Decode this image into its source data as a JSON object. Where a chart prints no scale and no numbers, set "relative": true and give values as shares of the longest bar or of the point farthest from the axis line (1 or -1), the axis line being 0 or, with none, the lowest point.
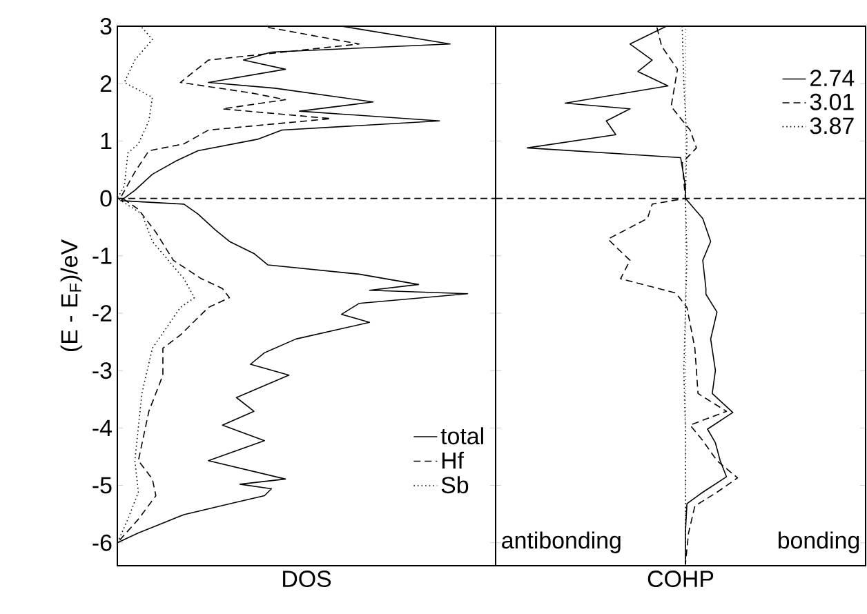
{
  "chart_data": [
    {
      "type": "line",
      "orientation": "horizontal",
      "relative": true,
      "xlabel": "DOS",
      "ylabel": "(E - E$_{F}$)/eV",
      "ylim": [
        -6.4,
        3
      ],
      "yticks": [
        -6,
        -5,
        -4,
        -3,
        -2,
        -1,
        0,
        1,
        2,
        3
      ],
      "tick_labels": "y",
      "legend": "bottom right",
      "ref_lines": [
        {
          "axis": "y",
          "value": 0,
          "line_style": "dashed",
          "color": "#000000"
        }
      ],
      "series": [
        {
          "name": "total",
          "color": "#000000",
          "line_style": "solid",
          "x": [
            3.0,
            2.69,
            2.55,
            2.41,
            2.25,
            2.02,
            1.92,
            1.68,
            1.52,
            1.35,
            1.19,
            1.03,
            0.83,
            0.66,
            0.42,
            0.14,
            -0.04,
            -0.1,
            -0.27,
            -0.55,
            -0.75,
            -0.96,
            -1.16,
            -1.32,
            -1.5,
            -1.6,
            -1.66,
            -1.83,
            -2.02,
            -2.16,
            -2.45,
            -2.69,
            -2.89,
            -3.08,
            -3.47,
            -3.71,
            -3.95,
            -4.22,
            -4.57,
            -4.89,
            -4.98,
            -5.06,
            -5.18,
            -5.28,
            -5.51,
            -5.83,
            -6.0
          ],
          "values": [
            0.64,
            0.95,
            0.44,
            0.36,
            0.48,
            0.26,
            0.45,
            0.73,
            0.52,
            0.92,
            0.47,
            0.4,
            0.23,
            0.17,
            0.1,
            0.05,
            0.01,
            0.19,
            0.23,
            0.28,
            0.32,
            0.39,
            0.43,
            0.69,
            0.86,
            0.72,
            1.0,
            0.69,
            0.64,
            0.72,
            0.51,
            0.42,
            0.38,
            0.49,
            0.34,
            0.39,
            0.3,
            0.42,
            0.26,
            0.48,
            0.35,
            0.44,
            0.42,
            0.35,
            0.19,
            0.06,
            0.0
          ]
        },
        {
          "name": "Hf",
          "color": "#000000",
          "line_style": "dashed",
          "x": [
            2.98,
            2.69,
            2.41,
            2.02,
            1.84,
            1.72,
            1.56,
            1.39,
            1.19,
            0.95,
            0.83,
            0.46,
            0.02,
            -0.19,
            -0.59,
            -1.08,
            -1.4,
            -1.57,
            -1.73,
            -1.9,
            -2.38,
            -2.61,
            -3.08,
            -3.71,
            -4.57,
            -4.89,
            -5.18,
            -5.59,
            -6.0
          ],
          "values": [
            0.43,
            0.69,
            0.26,
            0.18,
            0.38,
            0.48,
            0.3,
            0.61,
            0.26,
            0.19,
            0.09,
            0.05,
            0.01,
            0.06,
            0.11,
            0.16,
            0.24,
            0.3,
            0.32,
            0.26,
            0.18,
            0.13,
            0.13,
            0.09,
            0.06,
            0.1,
            0.11,
            0.06,
            0.0
          ]
        },
        {
          "name": "Sb",
          "color": "#000000",
          "line_style": "dotted",
          "x": [
            2.98,
            2.77,
            2.41,
            2.02,
            1.76,
            1.35,
            0.95,
            0.79,
            0.22,
            0.0,
            -0.27,
            -0.75,
            -1.4,
            -1.73,
            -1.9,
            -2.61,
            -3.4,
            -4.57,
            -5.12,
            -5.59,
            -6.0
          ],
          "values": [
            0.07,
            0.1,
            0.05,
            0.02,
            0.1,
            0.09,
            0.06,
            0.03,
            0.02,
            0.0,
            0.07,
            0.1,
            0.19,
            0.22,
            0.18,
            0.1,
            0.07,
            0.05,
            0.06,
            0.03,
            0.0
          ]
        }
      ]
    },
    {
      "type": "line",
      "orientation": "horizontal",
      "relative": true,
      "xlabel": "COHP",
      "ylim": [
        -6.4,
        3
      ],
      "yticks": [
        -6,
        -5,
        -4,
        -3,
        -2,
        -1,
        0,
        1,
        2,
        3
      ],
      "tick_labels": false,
      "legend": "top right",
      "annotations": [
        "antibonding",
        "bonding"
      ],
      "ref_lines": [
        {
          "axis": "y",
          "value": 0,
          "line_style": "dashed",
          "color": "#000000"
        },
        {
          "axis": "x",
          "value": 0,
          "line_style": "dotted",
          "color": "#000000"
        }
      ],
      "series": [
        {
          "name": "2.74",
          "color": "#000000",
          "line_style": "solid",
          "x": [
            3.0,
            2.69,
            2.41,
            2.21,
            1.96,
            1.66,
            1.56,
            1.35,
            1.11,
            0.88,
            0.71,
            0.22,
            0.0,
            -0.35,
            -0.75,
            -1.08,
            -1.57,
            -1.67,
            -1.98,
            -2.45,
            -3.0,
            -3.4,
            -3.73,
            -4.02,
            -4.26,
            -4.57,
            -4.85,
            -5.12,
            -5.32,
            -5.83,
            -6.38
          ],
          "values": [
            -0.12,
            -0.35,
            -0.21,
            -0.3,
            -0.11,
            -0.76,
            -0.35,
            -0.5,
            -0.44,
            -1.0,
            -0.03,
            0.0,
            0.0,
            0.11,
            0.16,
            0.11,
            0.13,
            0.13,
            0.2,
            0.16,
            0.19,
            0.17,
            0.3,
            0.14,
            0.19,
            0.22,
            0.26,
            0.11,
            0.01,
            0.0,
            0.0
          ]
        },
        {
          "name": "3.01",
          "color": "#000000",
          "line_style": "dashed",
          "x": [
            2.98,
            2.65,
            2.25,
            1.6,
            1.19,
            0.88,
            0.62,
            0.0,
            -0.1,
            -0.35,
            -0.71,
            -1.08,
            -1.4,
            -1.65,
            -1.9,
            -2.61,
            -3.4,
            -3.71,
            -3.95,
            -4.22,
            -4.57,
            -4.87,
            -5.12,
            -5.36,
            -5.83,
            -6.38
          ],
          "values": [
            -0.18,
            -0.15,
            -0.05,
            -0.09,
            0.03,
            0.07,
            -0.02,
            0.0,
            -0.21,
            -0.24,
            -0.49,
            -0.35,
            -0.41,
            -0.06,
            0.01,
            0.06,
            0.08,
            0.26,
            0.03,
            0.11,
            0.2,
            0.33,
            0.2,
            0.06,
            0.02,
            0.0
          ]
        },
        {
          "name": "3.87",
          "color": "#000000",
          "line_style": "dotted",
          "x": [
            3.0,
            2.0,
            1.0,
            0.0,
            -1.0,
            -2.0,
            -3.0,
            -4.0,
            -5.0,
            -6.38
          ],
          "values": [
            -0.02,
            -0.01,
            0.01,
            0.0,
            0.01,
            0.0,
            -0.01,
            0.0,
            0.0,
            0.0
          ]
        }
      ]
    }
  ]
}
